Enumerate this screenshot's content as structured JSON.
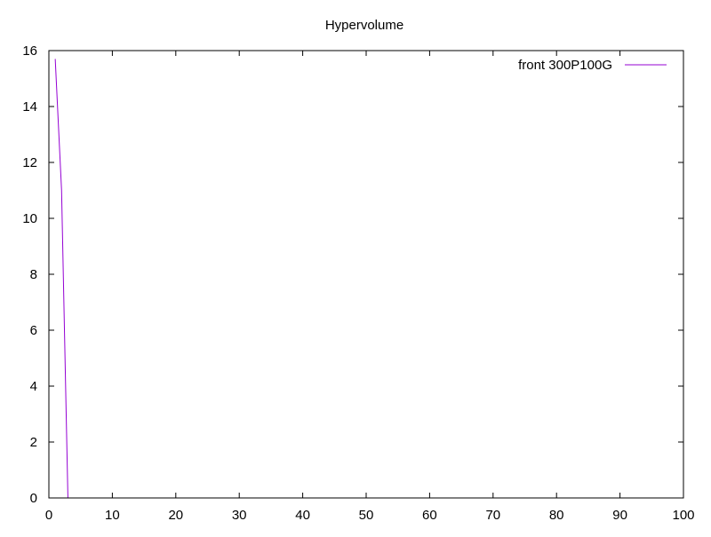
{
  "chart_data": {
    "type": "line",
    "title": "Hypervolume",
    "xlabel": "",
    "ylabel": "",
    "xlim": [
      0,
      100
    ],
    "ylim": [
      0,
      16
    ],
    "xticks": [
      0,
      10,
      20,
      30,
      40,
      50,
      60,
      70,
      80,
      90,
      100
    ],
    "yticks": [
      0,
      2,
      4,
      6,
      8,
      10,
      12,
      14,
      16
    ],
    "grid": false,
    "legend_position": "top-right",
    "series": [
      {
        "name": "front 300P100G",
        "color": "#9400d3",
        "x": [
          1,
          2,
          3
        ],
        "y": [
          15.7,
          11.0,
          0
        ]
      }
    ]
  }
}
